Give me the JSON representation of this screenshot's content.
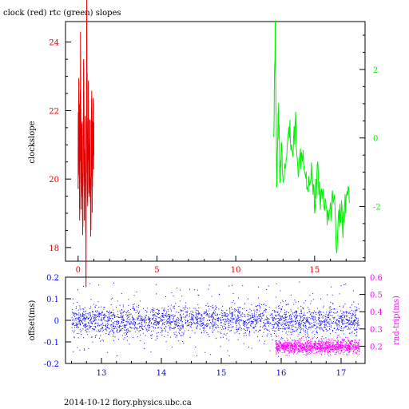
{
  "title": "clock (red) rtc (green) slopes",
  "footer": "2014-10-12 flory.physics.ubc.ca",
  "colors": {
    "clock": "#e00000",
    "rtc": "#00ee00",
    "offset": "#0000ff",
    "rndtrip": "#ff00ff",
    "axes": "#000000"
  },
  "chart_data": [
    {
      "type": "line",
      "ylabel": "clockslope",
      "xlim": [
        -0.8,
        18.2
      ],
      "ylim_left": [
        17.6,
        24.6
      ],
      "ylim_right": [
        -3.6,
        3.4
      ],
      "x_ticks": [
        "0",
        "5",
        "10",
        "15"
      ],
      "x_tick_values": [
        0,
        5,
        10,
        15
      ],
      "y_ticks_left": [
        "18",
        "20",
        "22",
        "24"
      ],
      "y_tick_values_left": [
        18,
        20,
        22,
        24
      ],
      "y_ticks_right": [
        "2",
        "0",
        "-2"
      ],
      "y_tick_values_right": [
        2,
        0,
        -2
      ],
      "series": [
        {
          "name": "clock",
          "axis": "left",
          "x": [
            0.0,
            0.05,
            0.1,
            0.15,
            0.2,
            0.25,
            0.3,
            0.35,
            0.4,
            0.45,
            0.5,
            0.55,
            0.6,
            0.65,
            0.7,
            0.75,
            0.8,
            0.85,
            0.9,
            0.95,
            1.0
          ],
          "y": [
            20.6,
            22.4,
            19.2,
            23.4,
            19.6,
            21.8,
            18.4,
            24.1,
            19.0,
            21.2,
            17.9,
            24.3,
            19.8,
            22.0,
            19.2,
            21.5,
            18.7,
            22.3,
            19.5,
            21.8,
            20.7
          ]
        },
        {
          "name": "rtc",
          "axis": "right",
          "x": [
            12.4,
            12.5,
            12.6,
            12.7,
            12.8,
            12.9,
            13.0,
            13.2,
            13.4,
            13.6,
            13.8,
            14.0,
            14.2,
            14.4,
            14.6,
            14.8,
            15.0,
            15.2,
            15.4,
            15.6,
            15.8,
            16.0,
            16.2,
            16.4,
            16.6,
            16.8,
            17.0,
            17.2
          ],
          "y": [
            0.0,
            3.1,
            -1.2,
            1.0,
            -1.1,
            -0.3,
            -1.6,
            -0.5,
            0.2,
            -0.4,
            0.4,
            -1.0,
            -0.2,
            -0.8,
            -1.4,
            -0.8,
            -1.9,
            -1.0,
            -1.8,
            -1.6,
            -2.4,
            -2.2,
            -1.6,
            -3.0,
            -2.0,
            -2.5,
            -1.7,
            -1.9
          ]
        }
      ]
    },
    {
      "type": "scatter",
      "ylabel": "offset(ms)",
      "ylabel_right": "rnd-trip(ms)",
      "xlim": [
        12.4,
        17.4
      ],
      "ylim_left": [
        -0.2,
        0.2
      ],
      "ylim_right": [
        0.1,
        0.6
      ],
      "x_ticks": [
        "13",
        "14",
        "15",
        "16",
        "17"
      ],
      "x_tick_values": [
        13,
        14,
        15,
        16,
        17
      ],
      "y_ticks_left": [
        "0.2",
        "0.1",
        "0",
        "-0.1",
        "-0.2"
      ],
      "y_tick_values_left": [
        0.2,
        0.1,
        0,
        -0.1,
        -0.2
      ],
      "y_ticks_right": [
        "0.6",
        "0.5",
        "0.4",
        "0.3",
        "0.2"
      ],
      "y_tick_values_right": [
        0.6,
        0.5,
        0.4,
        0.3,
        0.2
      ],
      "series": [
        {
          "name": "offset",
          "axis": "left",
          "x_range": [
            12.5,
            17.3
          ],
          "center": 0.0,
          "spread": 0.035
        },
        {
          "name": "rnd-trip",
          "axis": "right",
          "x_range": [
            15.9,
            17.3
          ],
          "center": 0.2,
          "spread": 0.02
        }
      ]
    }
  ]
}
